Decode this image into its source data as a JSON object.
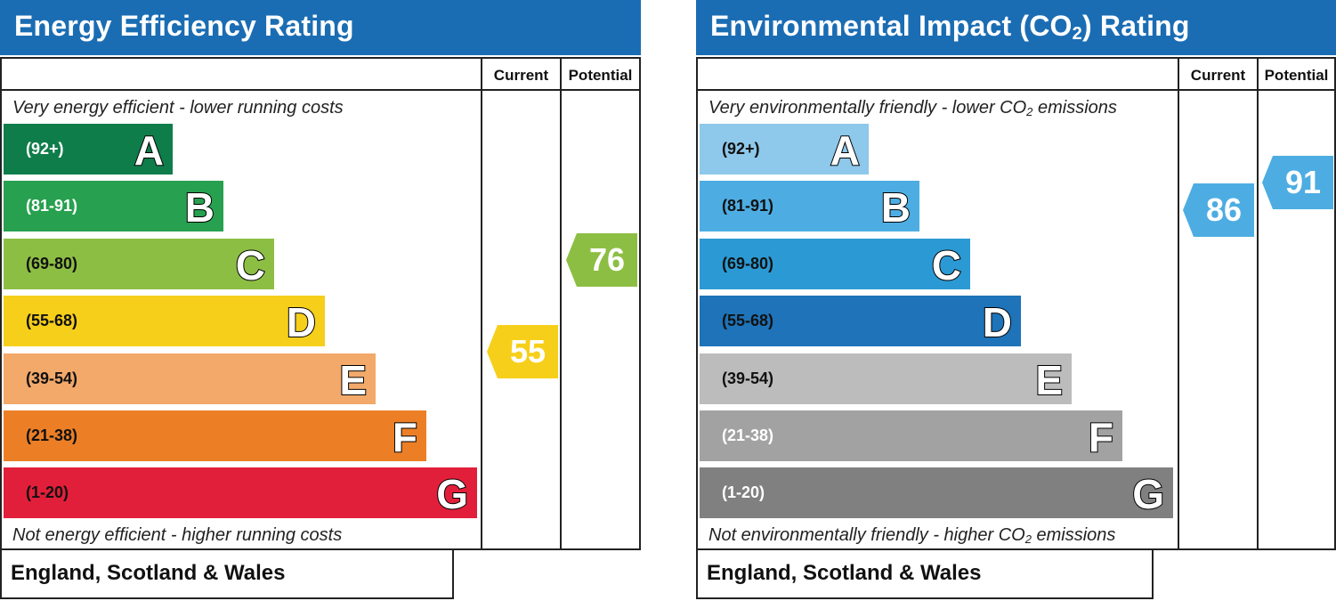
{
  "chart_data": [
    {
      "type": "bar",
      "title": "Energy Efficiency Rating",
      "columns": {
        "current": "Current",
        "potential": "Potential"
      },
      "top_note": "Very energy efficient - lower running costs",
      "bottom_note": "Not energy efficient - higher running costs",
      "footer": "England, Scotland & Wales",
      "bands": [
        {
          "letter": "A",
          "range": "(92+)",
          "color": "#0f7d4a",
          "text_color": "#ffffff"
        },
        {
          "letter": "B",
          "range": "(81-91)",
          "color": "#27a04f",
          "text_color": "#ffffff"
        },
        {
          "letter": "C",
          "range": "(69-80)",
          "color": "#8dbe44",
          "text_color": "#111111"
        },
        {
          "letter": "D",
          "range": "(55-68)",
          "color": "#f6cf1a",
          "text_color": "#111111"
        },
        {
          "letter": "E",
          "range": "(39-54)",
          "color": "#f2a96a",
          "text_color": "#111111"
        },
        {
          "letter": "F",
          "range": "(21-38)",
          "color": "#ec7f26",
          "text_color": "#111111"
        },
        {
          "letter": "G",
          "range": "(1-20)",
          "color": "#e21f3a",
          "text_color": "#111111"
        }
      ],
      "current": {
        "value": 55,
        "color": "#f6cf1a"
      },
      "potential": {
        "value": 76,
        "color": "#8dbe44"
      }
    },
    {
      "type": "bar",
      "title_parts": [
        "Environmental Impact (CO",
        "2",
        ") Rating"
      ],
      "columns": {
        "current": "Current",
        "potential": "Potential"
      },
      "top_note_parts": [
        "Very environmentally friendly - lower CO",
        "2",
        " emissions"
      ],
      "bottom_note_parts": [
        "Not environmentally friendly - higher CO",
        "2",
        " emissions"
      ],
      "footer": "England, Scotland & Wales",
      "bands": [
        {
          "letter": "A",
          "range": "(92+)",
          "color": "#8ec8ea",
          "text_color": "#111111"
        },
        {
          "letter": "B",
          "range": "(81-91)",
          "color": "#4dade2",
          "text_color": "#111111"
        },
        {
          "letter": "C",
          "range": "(69-80)",
          "color": "#2b9ad4",
          "text_color": "#111111"
        },
        {
          "letter": "D",
          "range": "(55-68)",
          "color": "#1e73b9",
          "text_color": "#111111"
        },
        {
          "letter": "E",
          "range": "(39-54)",
          "color": "#bcbcbc",
          "text_color": "#111111"
        },
        {
          "letter": "F",
          "range": "(21-38)",
          "color": "#a2a2a2",
          "text_color": "#ffffff"
        },
        {
          "letter": "G",
          "range": "(1-20)",
          "color": "#808080",
          "text_color": "#ffffff"
        }
      ],
      "current": {
        "value": 86,
        "color": "#4dade2"
      },
      "potential": {
        "value": 91,
        "color": "#4dade2"
      }
    }
  ]
}
